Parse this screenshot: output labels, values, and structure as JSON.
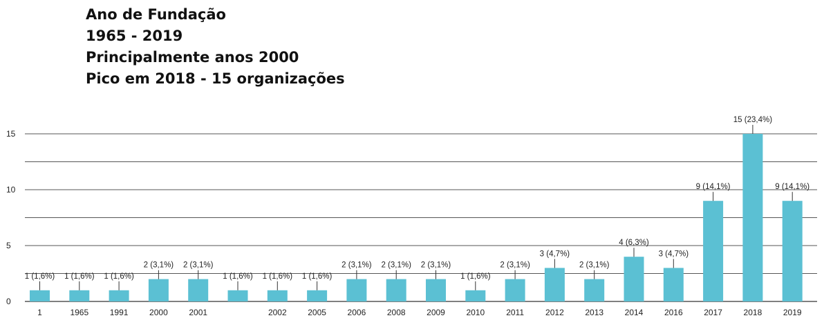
{
  "heading": {
    "line1": "Ano de Fundação",
    "line2": "1965 - 2019",
    "line3": "Principalmente anos 2000",
    "line4": "Pico em 2018 - 15 organizações"
  },
  "colors": {
    "bar": "#5bc0d3",
    "grid": "#555555",
    "text": "#222222"
  },
  "chart_data": {
    "type": "bar",
    "categories": [
      "1",
      "1965",
      "1991",
      "2000",
      "2001",
      "",
      "2002",
      "2005",
      "2006",
      "2008",
      "2009",
      "2010",
      "2011",
      "2012",
      "2013",
      "2014",
      "2016",
      "2017",
      "2018",
      "2019"
    ],
    "values": [
      1,
      1,
      1,
      2,
      2,
      1,
      1,
      1,
      2,
      2,
      2,
      1,
      2,
      3,
      2,
      4,
      3,
      9,
      15,
      9
    ],
    "data_labels": [
      "1 (1,6%)",
      "1 (1,6%)",
      "1 (1,6%)",
      "2 (3,1%)",
      "2 (3,1%)",
      "1 (1,6%)",
      "1 (1,6%)",
      "1 (1,6%)",
      "2 (3,1%)",
      "2 (3,1%)",
      "2 (3,1%)",
      "1 (1,6%)",
      "2 (3,1%)",
      "3 (4,7%)",
      "2 (3,1%)",
      "4 (6,3%)",
      "3 (4,7%)",
      "9 (14,1%)",
      "15 (23,4%)",
      "9 (14,1%)"
    ],
    "yticks": [
      0,
      5,
      10,
      15
    ],
    "ylim": [
      0,
      15
    ],
    "grid": true,
    "legend": "none"
  }
}
